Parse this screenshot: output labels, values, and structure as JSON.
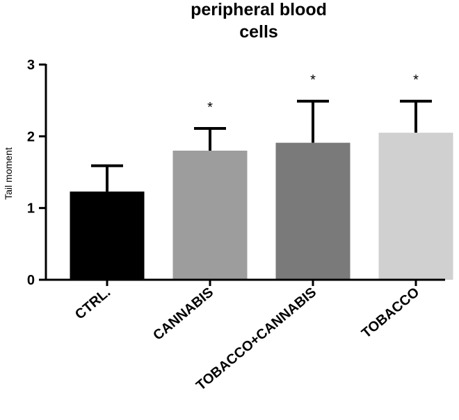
{
  "chart_data": {
    "type": "bar",
    "title_lines": [
      "peripheral blood",
      "cells"
    ],
    "ylabel": "Tail moment",
    "xlabel": "",
    "ylim": [
      0,
      3
    ],
    "yticks": [
      "0",
      "1",
      "2",
      "3"
    ],
    "categories": [
      "CTRL.",
      "CANNABIS",
      "TOBACCO+CANNABIS",
      "TOBACCO"
    ],
    "values": [
      1.23,
      1.8,
      1.91,
      2.05
    ],
    "error": [
      0.36,
      0.31,
      0.58,
      0.44
    ],
    "significance": [
      "",
      "*",
      "*",
      "*"
    ],
    "colors": [
      "#000000",
      "#9d9d9d",
      "#7a7a7a",
      "#d0d0d0"
    ],
    "grid": false,
    "legend": "none"
  }
}
